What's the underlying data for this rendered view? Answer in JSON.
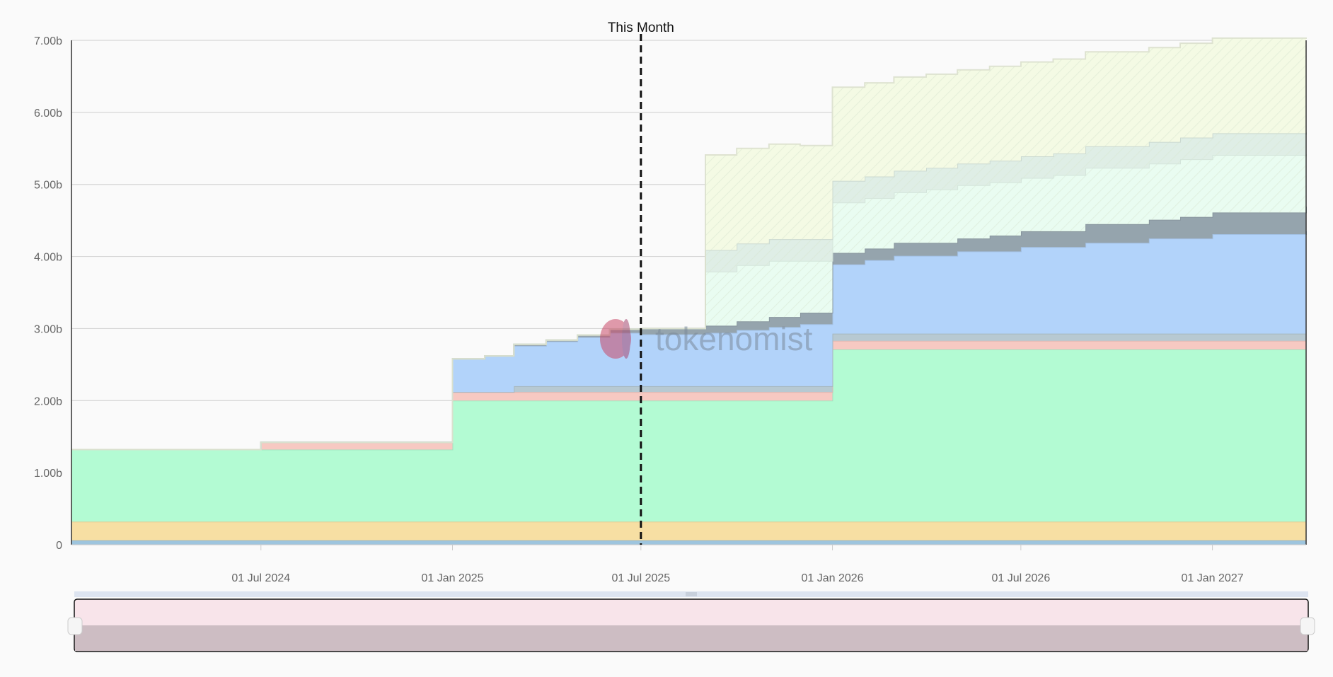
{
  "chart_data": {
    "type": "area",
    "stacked": true,
    "step": true,
    "x_axis": {
      "type": "date",
      "range": [
        "2024-01-01",
        "2027-04-01"
      ],
      "ticks": [
        {
          "date": "2024-07-01",
          "label": "01 Jul 2024"
        },
        {
          "date": "2025-01-01",
          "label": "01 Jan 2025"
        },
        {
          "date": "2025-07-01",
          "label": "01 Jul 2025"
        },
        {
          "date": "2026-01-01",
          "label": "01 Jan 2026"
        },
        {
          "date": "2026-07-01",
          "label": "01 Jul 2026"
        },
        {
          "date": "2027-01-01",
          "label": "01 Jan 2027"
        }
      ]
    },
    "y_axis": {
      "range": [
        0,
        7000000000
      ],
      "ticks": [
        {
          "value": 0,
          "label": "0"
        },
        {
          "value": 1000000000,
          "label": "1.00b"
        },
        {
          "value": 2000000000,
          "label": "2.00b"
        },
        {
          "value": 3000000000,
          "label": "3.00b"
        },
        {
          "value": 4000000000,
          "label": "4.00b"
        },
        {
          "value": 5000000000,
          "label": "5.00b"
        },
        {
          "value": 6000000000,
          "label": "6.00b"
        },
        {
          "value": 7000000000,
          "label": "7.00b"
        }
      ]
    },
    "grid": true,
    "marker": {
      "date": "2025-07-01",
      "label": "This Month"
    },
    "watermark": "tokenomist",
    "navigator": true,
    "series": [
      {
        "color": "#9ec5de",
        "points": [
          [
            "2024-01-01",
            0.06
          ],
          [
            "2027-04-01",
            0.06
          ]
        ]
      },
      {
        "color": "#f7dfa3",
        "points": [
          [
            "2024-01-01",
            0.26
          ],
          [
            "2027-04-01",
            0.26
          ]
        ]
      },
      {
        "color": "#b3fbd3",
        "points": [
          [
            "2024-01-01",
            1.0
          ],
          [
            "2025-01-01",
            1.68
          ],
          [
            "2026-01-01",
            2.39
          ],
          [
            "2027-04-01",
            2.39
          ]
        ]
      },
      {
        "color": "#f7c9c2",
        "points": [
          [
            "2024-01-01",
            0.0
          ],
          [
            "2024-07-01",
            0.1
          ],
          [
            "2025-01-01",
            0.12
          ],
          [
            "2026-01-01",
            0.12
          ],
          [
            "2027-04-01",
            0.12
          ]
        ]
      },
      {
        "color": "#b7c9d2",
        "points": [
          [
            "2024-01-01",
            0.0
          ],
          [
            "2025-03-01",
            0.08
          ],
          [
            "2026-01-01",
            0.1
          ],
          [
            "2027-04-01",
            0.1
          ]
        ]
      },
      {
        "color": "#b2d3fa",
        "points": [
          [
            "2024-01-01",
            0.0
          ],
          [
            "2025-01-01",
            0.46
          ],
          [
            "2025-02-01",
            0.5
          ],
          [
            "2025-03-01",
            0.56
          ],
          [
            "2025-04-01",
            0.62
          ],
          [
            "2025-05-01",
            0.68
          ],
          [
            "2025-06-01",
            0.74
          ],
          [
            "2025-07-01",
            0.72
          ],
          [
            "2025-08-01",
            0.72
          ],
          [
            "2025-09-01",
            0.74
          ],
          [
            "2025-10-01",
            0.78
          ],
          [
            "2025-11-01",
            0.82
          ],
          [
            "2025-12-01",
            0.86
          ],
          [
            "2026-01-01",
            0.96
          ],
          [
            "2026-02-01",
            1.02
          ],
          [
            "2026-03-01",
            1.08
          ],
          [
            "2026-05-01",
            1.14
          ],
          [
            "2026-07-01",
            1.2
          ],
          [
            "2026-09-01",
            1.26
          ],
          [
            "2026-11-01",
            1.32
          ],
          [
            "2027-01-01",
            1.38
          ],
          [
            "2027-04-01",
            1.42
          ]
        ]
      },
      {
        "color": "#95a4ad",
        "points": [
          [
            "2024-01-01",
            0.0
          ],
          [
            "2025-02-01",
            0.0
          ],
          [
            "2025-03-01",
            0.02
          ],
          [
            "2025-05-01",
            0.03
          ],
          [
            "2025-06-01",
            0.05
          ],
          [
            "2025-07-01",
            0.08
          ],
          [
            "2025-09-01",
            0.1
          ],
          [
            "2025-10-01",
            0.12
          ],
          [
            "2025-11-01",
            0.14
          ],
          [
            "2025-12-01",
            0.16
          ],
          [
            "2026-01-01",
            0.16
          ],
          [
            "2026-03-01",
            0.18
          ],
          [
            "2026-06-01",
            0.22
          ],
          [
            "2026-09-01",
            0.26
          ],
          [
            "2026-12-01",
            0.3
          ],
          [
            "2027-04-01",
            0.34
          ]
        ]
      },
      {
        "color": "#e9fcf1",
        "points": [
          [
            "2024-01-01",
            0.0
          ],
          [
            "2025-09-01",
            0.75
          ],
          [
            "2025-10-01",
            0.78
          ],
          [
            "2025-12-01",
            0.72
          ],
          [
            "2026-01-01",
            0.7
          ],
          [
            "2026-04-01",
            0.74
          ],
          [
            "2026-08-01",
            0.78
          ],
          [
            "2026-12-01",
            0.8
          ],
          [
            "2027-04-01",
            0.7
          ]
        ]
      },
      {
        "color": "#dfeee6",
        "points": [
          [
            "2024-01-01",
            0.0
          ],
          [
            "2025-09-01",
            0.3
          ],
          [
            "2026-01-01",
            0.3
          ],
          [
            "2027-04-01",
            0.3
          ]
        ]
      },
      {
        "color": "#f4fae4",
        "points": [
          [
            "2024-01-01",
            0.0
          ],
          [
            "2025-09-01",
            1.32
          ],
          [
            "2025-12-01",
            1.3
          ],
          [
            "2026-01-01",
            1.3
          ],
          [
            "2026-06-01",
            1.31
          ],
          [
            "2027-01-01",
            1.32
          ],
          [
            "2027-04-01",
            1.33
          ]
        ]
      }
    ]
  }
}
